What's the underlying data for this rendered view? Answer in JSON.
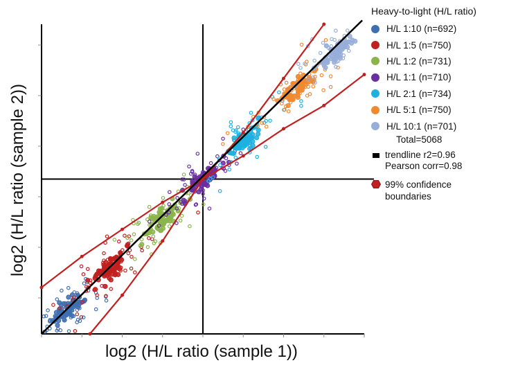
{
  "chart_data": {
    "type": "scatter",
    "xlabel": "log2 (H/L ratio (sample 1))",
    "ylabel": "log2 (H/L ratio (sample 2))",
    "xlim": [
      -4,
      4
    ],
    "ylim": [
      -4,
      4
    ],
    "legend_title": "Heavy-to-light (H/L ratio)",
    "series": [
      {
        "name": "H/L 1:10 (n=692)",
        "n": 692,
        "color": "#3f6fb0",
        "center": [
          -3.32,
          -3.32
        ]
      },
      {
        "name": "H/L 1:5 (n=750)",
        "n": 750,
        "color": "#c0201f",
        "center": [
          -2.32,
          -2.32
        ]
      },
      {
        "name": "H/L 1:2 (n=731)",
        "n": 731,
        "color": "#8ab54a",
        "center": [
          -1.0,
          -1.0
        ]
      },
      {
        "name": "H/L 1:1 (n=710)",
        "n": 710,
        "color": "#6a2fa0",
        "center": [
          0.0,
          0.0
        ]
      },
      {
        "name": "H/L 2:1 (n=734)",
        "n": 734,
        "color": "#1fb0e0",
        "center": [
          1.0,
          1.0
        ]
      },
      {
        "name": "H/L 5:1 (n=750)",
        "n": 750,
        "color": "#f08a30",
        "center": [
          2.32,
          2.32
        ]
      },
      {
        "name": "H/L 10:1 (n=701)",
        "n": 701,
        "color": "#97aed9",
        "center": [
          3.32,
          3.32
        ]
      }
    ],
    "total_label": "Total=5068",
    "trendline": {
      "label_1": "trendline r2=0.96",
      "label_2": "Pearson corr=0.98",
      "slope": 1.0,
      "intercept": 0.0,
      "color": "#000000"
    },
    "confidence": {
      "label_1": "99% confidence",
      "label_2": "boundaries",
      "color": "#c0201f",
      "upper": [
        [
          -4.0,
          -2.8
        ],
        [
          -3.0,
          -2.0
        ],
        [
          -2.0,
          -1.3
        ],
        [
          -1.0,
          -0.6
        ],
        [
          0.0,
          0.0
        ],
        [
          1.0,
          1.2
        ],
        [
          2.0,
          2.6
        ],
        [
          3.0,
          4.0
        ]
      ],
      "lower": [
        [
          -2.8,
          -4.0
        ],
        [
          -2.0,
          -3.0
        ],
        [
          -1.0,
          -1.6
        ],
        [
          0.0,
          0.0
        ],
        [
          1.0,
          0.6
        ],
        [
          2.0,
          1.3
        ],
        [
          3.0,
          1.9
        ],
        [
          4.0,
          2.7
        ]
      ]
    }
  }
}
